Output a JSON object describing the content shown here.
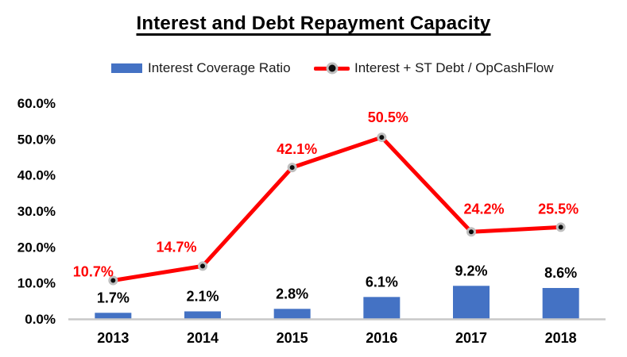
{
  "title": "Interest and Debt Repayment Capacity",
  "legend": {
    "bar_series_label": "Interest Coverage Ratio",
    "line_series_label": "Interest + ST Debt / OpCashFlow"
  },
  "colors": {
    "background": "#FFFFFF",
    "bar_fill": "#4472C4",
    "line_stroke": "#FF0000",
    "marker_fill": "#0D0D0D",
    "marker_ring": "#BFBFBF",
    "axis_line": "#C9C9C9",
    "bar_label_text": "#000000",
    "line_label_text": "#FF0000",
    "tick_text": "#000000",
    "legend_text": "#1A1A1A",
    "title_text": "#000000"
  },
  "chart_data": {
    "type": "bar",
    "subtype": "combo-bar-line",
    "title": "Interest and Debt Repayment Capacity",
    "xlabel": "",
    "ylabel": "",
    "ylim": [
      0,
      60
    ],
    "grid": false,
    "legend_position": "top",
    "categories": [
      "2013",
      "2014",
      "2015",
      "2016",
      "2017",
      "2018"
    ],
    "series": [
      {
        "name": "Interest Coverage Ratio",
        "type": "bar",
        "color": "#4472C4",
        "values": [
          1.7,
          2.1,
          2.8,
          6.1,
          9.2,
          8.6
        ],
        "labels": [
          "1.7%",
          "2.1%",
          "2.8%",
          "6.1%",
          "9.2%",
          "8.6%"
        ]
      },
      {
        "name": "Interest + ST Debt / OpCashFlow",
        "type": "line",
        "color": "#FF0000",
        "values": [
          10.7,
          14.7,
          42.1,
          50.5,
          24.2,
          25.5
        ],
        "labels": [
          "10.7%",
          "14.7%",
          "42.1%",
          "50.5%",
          "24.2%",
          "25.5%"
        ]
      }
    ],
    "y_ticks": [
      {
        "value": 60,
        "label": "60.0%"
      },
      {
        "value": 50,
        "label": "50.0%"
      },
      {
        "value": 40,
        "label": "40.0%"
      },
      {
        "value": 30,
        "label": "30.0%"
      },
      {
        "value": 20,
        "label": "20.0%"
      },
      {
        "value": 10,
        "label": "10.0%"
      },
      {
        "value": 0,
        "label": "0.0%"
      }
    ]
  }
}
